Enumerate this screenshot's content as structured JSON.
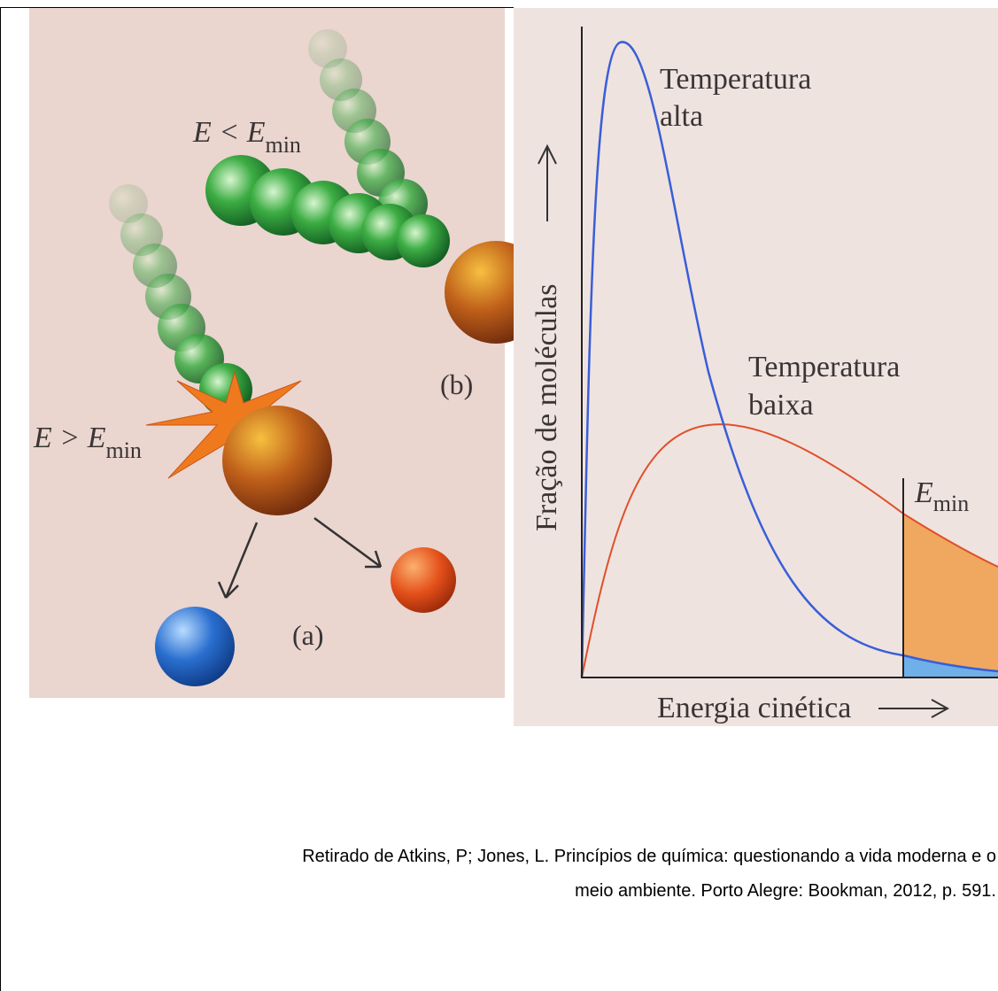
{
  "figure_a": {
    "collision_low": {
      "main": "E < E",
      "sub": "min"
    },
    "label_b": "(b)",
    "collision_high": {
      "main": "E > E",
      "sub": "min"
    },
    "label_a": "(a)"
  },
  "figure_b": {
    "curve_high": [
      "Temperatura",
      "alta"
    ],
    "curve_low": [
      "Temperatura",
      "baixa"
    ],
    "y_label": "Fração de moléculas",
    "x_label": "Energia cinética",
    "threshold": {
      "main": "E",
      "sub": "min"
    }
  },
  "caption": [
    "Retirado de Atkins, P; Jones, L. Princípios de química: questionando a vida moderna e o",
    "meio ambiente. Porto Alegre: Bookman, 2012, p. 591."
  ]
}
